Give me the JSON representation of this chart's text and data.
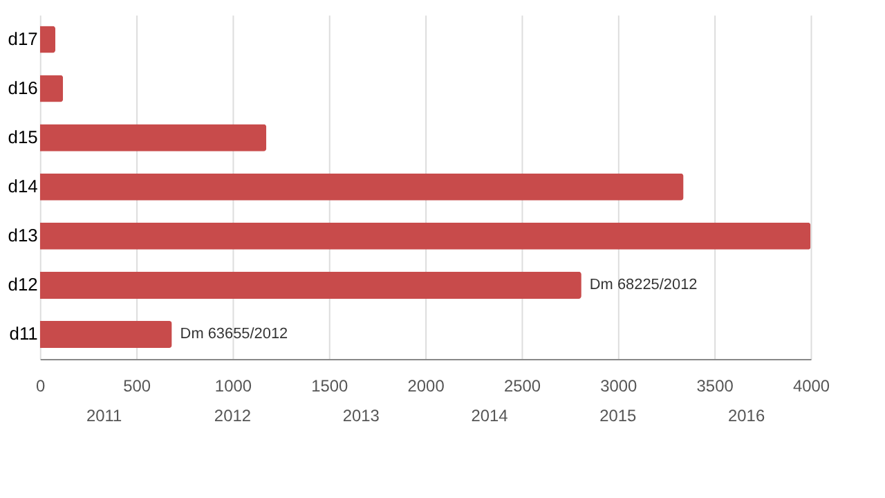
{
  "chart_data": {
    "type": "bar",
    "orientation": "horizontal",
    "categories": [
      "d17",
      "d16",
      "d15",
      "d14",
      "d13",
      "d12",
      "d11"
    ],
    "values": [
      80,
      120,
      1175,
      3340,
      4000,
      2810,
      685
    ],
    "color": "#c84b4b",
    "xlim": [
      0,
      4000
    ],
    "xticks": [
      0,
      500,
      1000,
      1500,
      2000,
      2500,
      3000,
      3500,
      4000
    ],
    "grid": "x",
    "annotations": [
      {
        "text": "Dm 68225/2012",
        "x": 2810,
        "y": "d12"
      },
      {
        "text": "Dm 63655/2012",
        "x": 685,
        "y": "d11"
      },
      "2011",
      "2012",
      "2013",
      "2014",
      "2015",
      "2016"
    ]
  }
}
